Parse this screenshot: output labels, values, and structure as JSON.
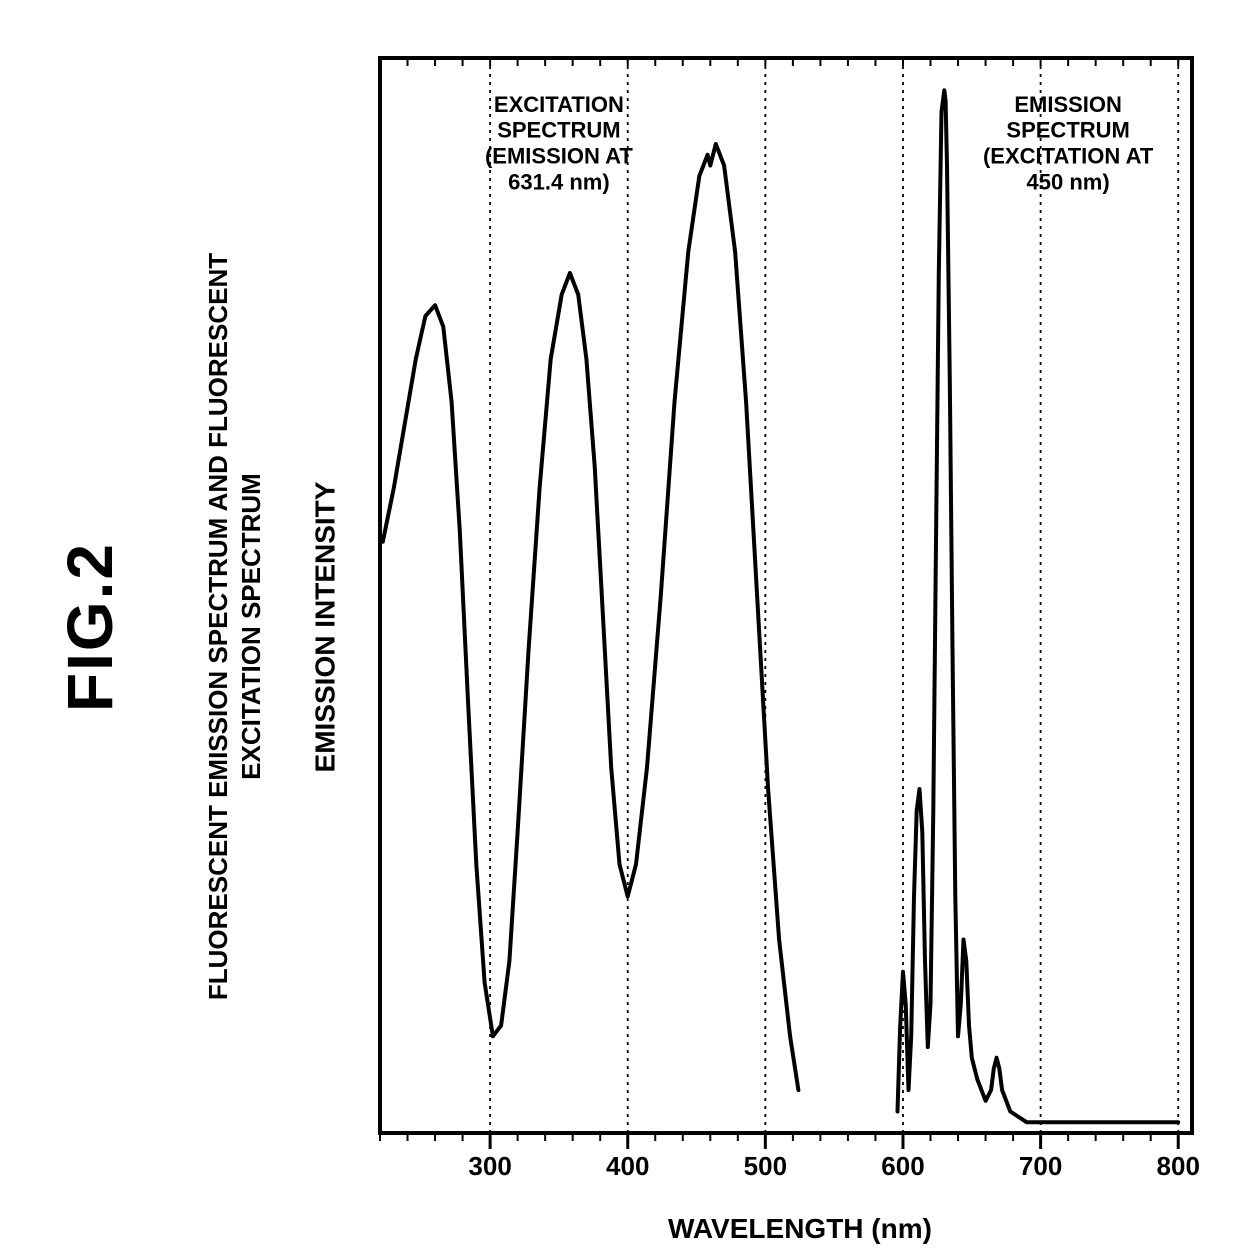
{
  "figure_label": "FIG.2",
  "chart": {
    "type": "line",
    "title_line1": "FLUORESCENT EMISSION SPECTRUM AND FLUORESCENT",
    "title_line2": "EXCITATION SPECTRUM",
    "title_fontsize": 26,
    "xlabel": "WAVELENGTH (nm)",
    "ylabel": "EMISSION INTENSITY",
    "label_fontsize": 28,
    "xlim": [
      220,
      810
    ],
    "ylim": [
      0,
      100
    ],
    "xticks_major": [
      300,
      400,
      500,
      600,
      700,
      800
    ],
    "xticks_minor_step": 20,
    "grid_color": "#000000",
    "grid_dash": "3,5",
    "background_color": "#ffffff",
    "axis_color": "#000000",
    "axis_width": 4,
    "line_color": "#000000",
    "line_width": 4,
    "series": [
      {
        "name": "excitation",
        "points": [
          [
            222,
            55
          ],
          [
            230,
            60
          ],
          [
            238,
            66
          ],
          [
            246,
            72
          ],
          [
            253,
            76
          ],
          [
            260,
            77
          ],
          [
            266,
            75
          ],
          [
            272,
            68
          ],
          [
            278,
            56
          ],
          [
            284,
            40
          ],
          [
            290,
            25
          ],
          [
            296,
            14
          ],
          [
            302,
            9
          ],
          [
            308,
            10
          ],
          [
            314,
            16
          ],
          [
            320,
            28
          ],
          [
            328,
            45
          ],
          [
            336,
            60
          ],
          [
            344,
            72
          ],
          [
            352,
            78
          ],
          [
            358,
            80
          ],
          [
            364,
            78
          ],
          [
            370,
            72
          ],
          [
            376,
            62
          ],
          [
            382,
            48
          ],
          [
            388,
            34
          ],
          [
            394,
            25
          ],
          [
            400,
            22
          ],
          [
            406,
            25
          ],
          [
            414,
            34
          ],
          [
            424,
            50
          ],
          [
            434,
            68
          ],
          [
            444,
            82
          ],
          [
            452,
            89
          ],
          [
            458,
            91
          ],
          [
            460,
            90
          ],
          [
            464,
            92
          ],
          [
            470,
            90
          ],
          [
            478,
            82
          ],
          [
            486,
            68
          ],
          [
            494,
            50
          ],
          [
            502,
            32
          ],
          [
            510,
            18
          ],
          [
            518,
            9
          ],
          [
            524,
            4
          ]
        ]
      },
      {
        "name": "emission",
        "points": [
          [
            596,
            2
          ],
          [
            598,
            10
          ],
          [
            600,
            15
          ],
          [
            602,
            12
          ],
          [
            604,
            4
          ],
          [
            606,
            9
          ],
          [
            608,
            22
          ],
          [
            610,
            30
          ],
          [
            612,
            32
          ],
          [
            614,
            28
          ],
          [
            616,
            16
          ],
          [
            618,
            8
          ],
          [
            620,
            12
          ],
          [
            622,
            30
          ],
          [
            624,
            55
          ],
          [
            626,
            80
          ],
          [
            628,
            95
          ],
          [
            630,
            97
          ],
          [
            631,
            96
          ],
          [
            632,
            90
          ],
          [
            634,
            70
          ],
          [
            636,
            45
          ],
          [
            638,
            22
          ],
          [
            640,
            9
          ],
          [
            642,
            12
          ],
          [
            644,
            18
          ],
          [
            646,
            16
          ],
          [
            648,
            10
          ],
          [
            650,
            7
          ],
          [
            654,
            5
          ],
          [
            660,
            3
          ],
          [
            664,
            4
          ],
          [
            666,
            6
          ],
          [
            668,
            7
          ],
          [
            670,
            6
          ],
          [
            672,
            4
          ],
          [
            678,
            2
          ],
          [
            690,
            1
          ],
          [
            710,
            1
          ],
          [
            740,
            1
          ],
          [
            800,
            1
          ]
        ]
      }
    ],
    "annotations": [
      {
        "key": "excitation_label",
        "lines": [
          "EXCITATION",
          "SPECTRUM",
          "(EMISSION AT",
          "631.4 nm)"
        ],
        "x": 350,
        "y_top": 95,
        "fontsize": 22
      },
      {
        "key": "emission_label",
        "lines": [
          "EMISSION",
          "SPECTRUM",
          "(EXCITATION AT",
          "450 nm)"
        ],
        "x": 720,
        "y_top": 95,
        "fontsize": 22
      }
    ]
  }
}
